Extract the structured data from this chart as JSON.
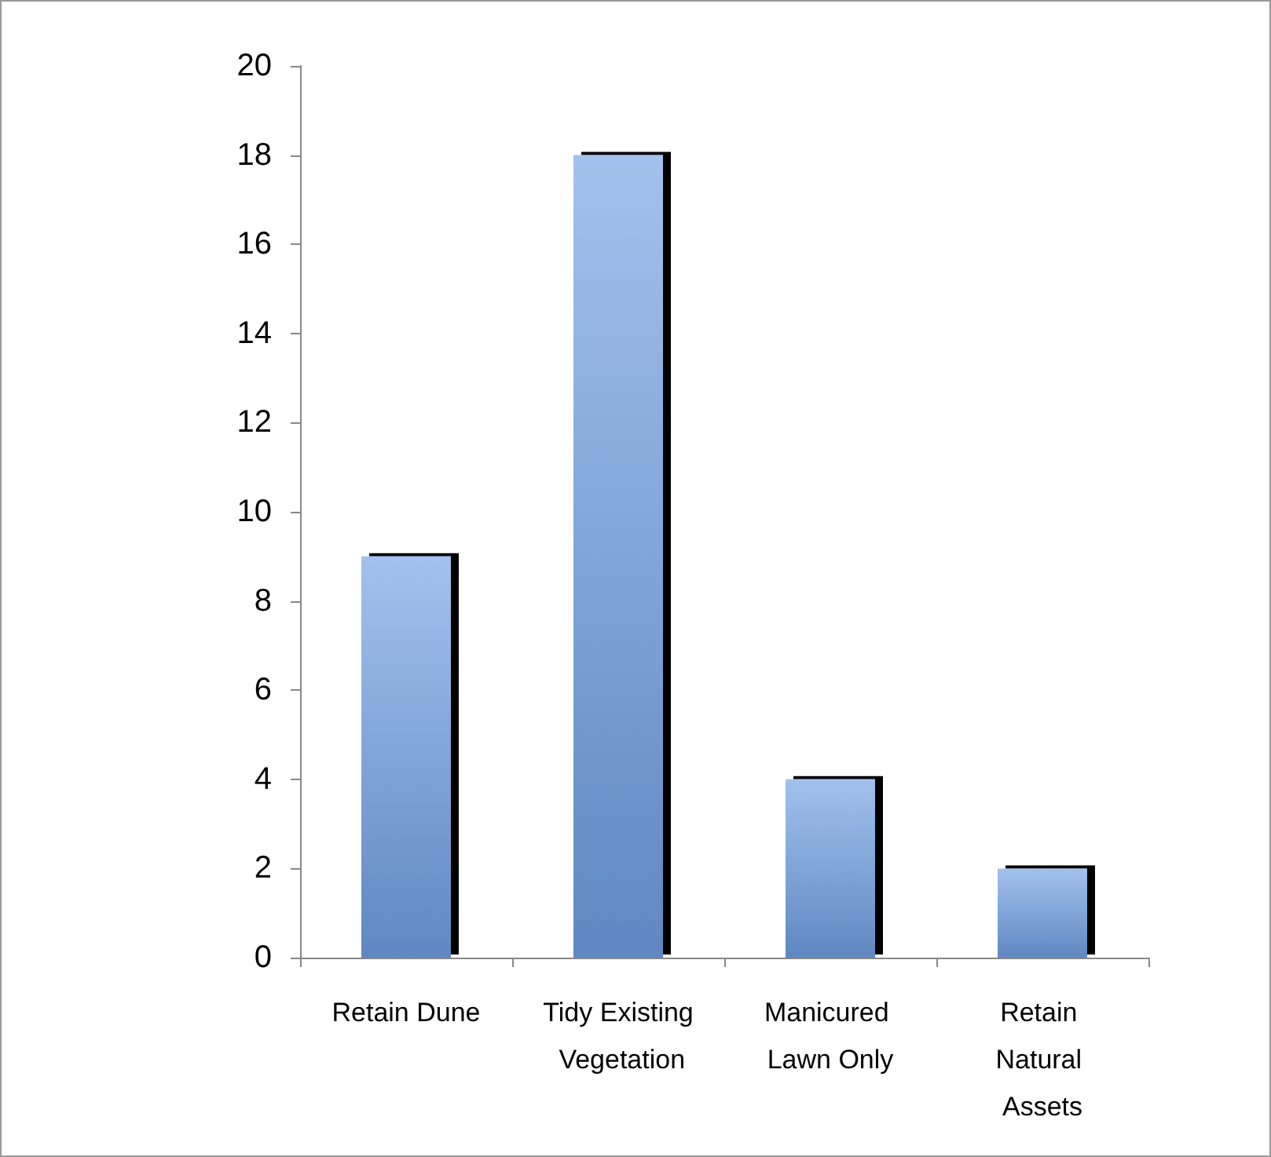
{
  "chart_data": {
    "type": "bar",
    "categories": [
      "Retain Dune",
      "Tidy Existing Vegetation",
      "Manicured Lawn Only",
      "Retain Natural Assets"
    ],
    "values": [
      9,
      18,
      4,
      2
    ],
    "color": "#70a0e4",
    "ylim": [
      0,
      20
    ],
    "yticks": [
      0,
      2,
      4,
      6,
      8,
      10,
      12,
      14,
      16,
      18,
      20
    ],
    "grid": false
  }
}
